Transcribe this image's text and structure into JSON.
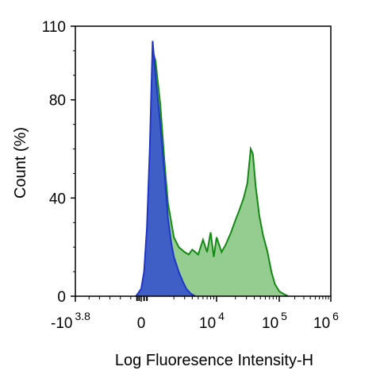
{
  "chart_data": {
    "type": "area",
    "xlabel": "Log Fluoresence Intensity-H",
    "ylabel": "Count  (%)",
    "ylim": [
      0,
      110
    ],
    "x_scale": "biexponential",
    "y_ticks": [
      {
        "value": 0,
        "label": "0"
      },
      {
        "value": 40,
        "label": "40"
      },
      {
        "value": 80,
        "label": "80"
      },
      {
        "value": 110,
        "label": "110"
      }
    ],
    "x_ticks": [
      {
        "base": "-10",
        "exp": "3.8"
      },
      {
        "base": "0",
        "exp": ""
      },
      {
        "base": "10",
        "exp": "4"
      },
      {
        "base": "10",
        "exp": "5"
      },
      {
        "base": "10",
        "exp": "6"
      }
    ],
    "colors": {
      "series1_fill": "#3f5fc6",
      "series1_line": "#1f35c8",
      "series2_fill": "#8fc98a",
      "series2_line": "#138a13"
    },
    "series": [
      {
        "x": [
          -500,
          0,
          200,
          400,
          600,
          800,
          1000,
          1200,
          1400,
          1600,
          1800,
          2000,
          2400,
          2800,
          3200,
          3800,
          4500
        ],
        "values": [
          0,
          3,
          10,
          28,
          60,
          104,
          90,
          70,
          50,
          32,
          22,
          16,
          10,
          6,
          3,
          1,
          0
        ]
      },
      {
        "x": [
          -500,
          0,
          300,
          600,
          800,
          1000,
          1200,
          1400,
          1600,
          2000,
          2400,
          3000,
          3500,
          4000,
          5000,
          6000,
          7000,
          8000,
          9000,
          10000,
          12000,
          14000,
          17000,
          20000,
          23000,
          27000,
          31000,
          35000,
          38000,
          42000,
          48000,
          55000,
          65000,
          75000,
          85000,
          100000,
          120000,
          150000
        ],
        "values": [
          0,
          2,
          10,
          40,
          100,
          96,
          78,
          55,
          38,
          24,
          20,
          18,
          17,
          19,
          17,
          23,
          18,
          26,
          16,
          24,
          18,
          21,
          26,
          31,
          35,
          40,
          46,
          60,
          58,
          45,
          33,
          25,
          18,
          10,
          5,
          2,
          1,
          0
        ]
      }
    ]
  }
}
